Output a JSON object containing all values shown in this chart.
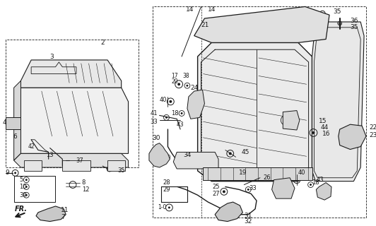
{
  "bg_color": "#ffffff",
  "line_color": "#1a1a1a",
  "fig_width": 5.32,
  "fig_height": 3.2,
  "dpi": 100
}
